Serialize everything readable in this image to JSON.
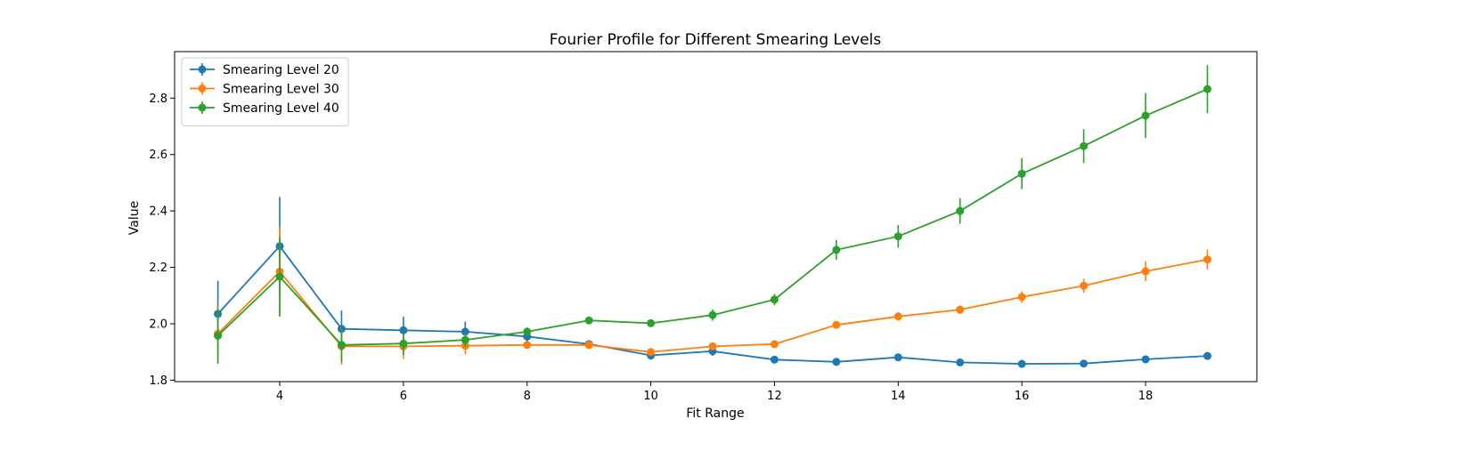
{
  "chart_data": {
    "type": "line",
    "title": "Fourier Profile for Different Smearing Levels",
    "xlabel": "Fit Range",
    "ylabel": "Value",
    "xlim": [
      2.3,
      19.8
    ],
    "ylim": [
      1.795,
      2.965
    ],
    "xticks": [
      4,
      6,
      8,
      10,
      12,
      14,
      16,
      18
    ],
    "yticks": [
      1.8,
      2.0,
      2.2,
      2.4,
      2.6,
      2.8
    ],
    "grid": false,
    "legend_position": "top-left",
    "x": [
      3,
      4,
      5,
      6,
      7,
      8,
      9,
      10,
      11,
      12,
      13,
      14,
      15,
      16,
      17,
      18,
      19
    ],
    "series": [
      {
        "name": "Smearing Level 20",
        "color": "#1f77b4",
        "values": [
          2.035,
          2.275,
          1.982,
          1.977,
          1.972,
          1.955,
          1.928,
          1.888,
          1.903,
          1.873,
          1.865,
          1.881,
          1.863,
          1.858,
          1.859,
          1.874,
          1.886
        ],
        "errors": [
          0.118,
          0.175,
          0.065,
          0.048,
          0.036,
          0.018,
          0.012,
          0.015,
          0.017,
          0.012,
          0.008,
          0.008,
          0.008,
          0.008,
          0.008,
          0.008,
          0.008
        ]
      },
      {
        "name": "Smearing Level 30",
        "color": "#ff7f0e",
        "values": [
          1.965,
          2.185,
          1.92,
          1.92,
          1.922,
          1.925,
          1.925,
          1.9,
          1.92,
          1.928,
          1.996,
          2.026,
          2.05,
          2.095,
          2.135,
          2.186,
          2.228
        ],
        "errors": [
          0.1,
          0.16,
          0.065,
          0.045,
          0.03,
          0.012,
          0.008,
          0.008,
          0.01,
          0.008,
          0.01,
          0.015,
          0.015,
          0.02,
          0.025,
          0.035,
          0.035
        ]
      },
      {
        "name": "Smearing Level 40",
        "color": "#2ca02c",
        "values": [
          1.958,
          2.167,
          1.925,
          1.93,
          1.943,
          1.972,
          2.012,
          2.002,
          2.031,
          2.086,
          2.262,
          2.31,
          2.4,
          2.532,
          2.63,
          2.738,
          2.832
        ],
        "errors": [
          0.1,
          0.14,
          0.06,
          0.04,
          0.025,
          0.015,
          0.01,
          0.01,
          0.02,
          0.02,
          0.035,
          0.04,
          0.045,
          0.055,
          0.06,
          0.08,
          0.085
        ]
      }
    ]
  }
}
